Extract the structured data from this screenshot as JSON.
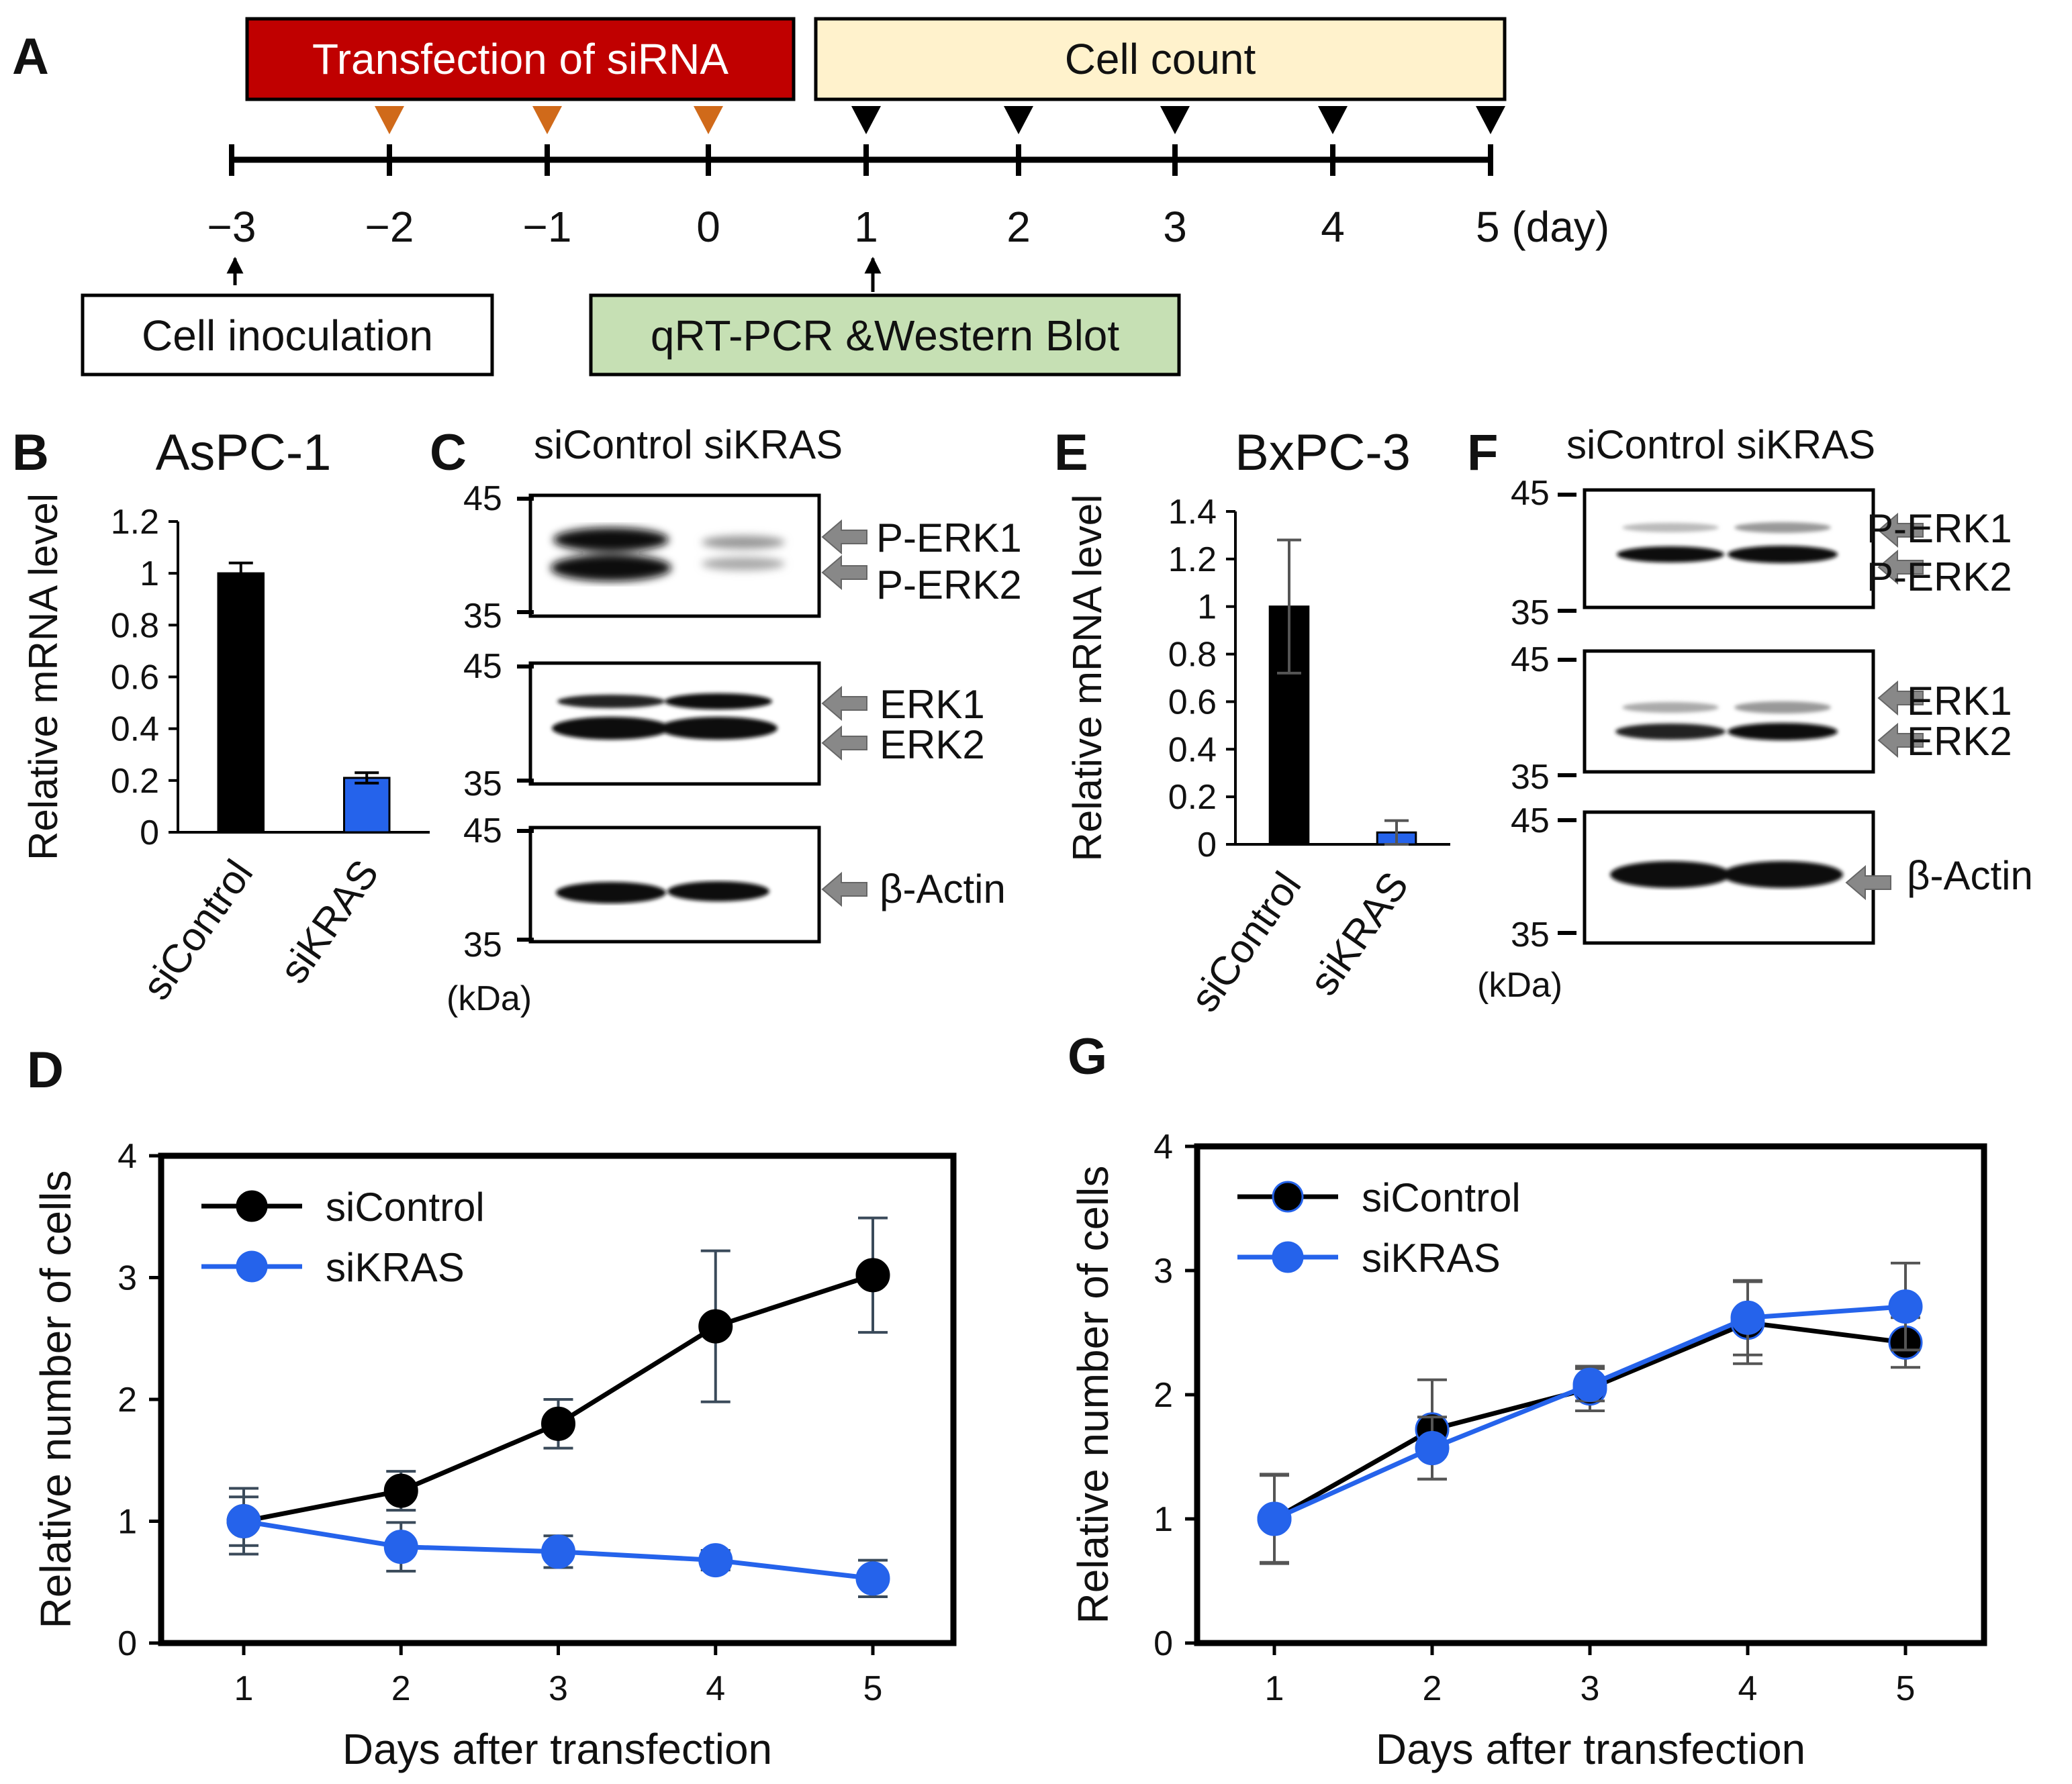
{
  "panels": {
    "A": "A",
    "B": "B",
    "C": "C",
    "D": "D",
    "E": "E",
    "F": "F",
    "G": "G"
  },
  "timeline": {
    "transfection_label": "Transfection of siRNA",
    "cellcount_label": "Cell count",
    "inoculation_label": "Cell inoculation",
    "assay_label": "qRT-PCR &Western Blot",
    "days": [
      "−3",
      "−2",
      "−1",
      "0",
      "1",
      "2",
      "3",
      "4",
      "5 (day)"
    ],
    "colors": {
      "transfection_fill": "#c00000",
      "cellcount_fill": "#fff2cc",
      "assay_fill": "#c6e0b4",
      "orange_marker": "#d06a1a"
    }
  },
  "blots": {
    "header": "siControl siKRAS",
    "unit": "(kDa)",
    "mw_45": "45",
    "mw_35": "35",
    "labels": {
      "perk1": "P-ERK1",
      "perk2": "P-ERK2",
      "erk1": "ERK1",
      "erk2": "ERK2",
      "actin": "β-Actin"
    }
  },
  "chart_data": [
    {
      "id": "B",
      "type": "bar",
      "title": "AsPC-1",
      "categories": [
        "siControl",
        "siKRAS"
      ],
      "values": [
        1.0,
        0.21
      ],
      "errors": [
        0.04,
        0.02
      ],
      "colors": [
        "#000000",
        "#2563eb"
      ],
      "ylabel": "Relative mRNA level",
      "ylim": [
        0,
        1.2
      ],
      "yticks": [
        "0",
        "0.2",
        "0.4",
        "0.6",
        "0.8",
        "1",
        "1.2"
      ]
    },
    {
      "id": "E",
      "type": "bar",
      "title": "BxPC-3",
      "categories": [
        "siControl",
        "siKRAS"
      ],
      "values": [
        1.0,
        0.05
      ],
      "errors": [
        0.28,
        0.05
      ],
      "colors": [
        "#000000",
        "#2563eb"
      ],
      "ylabel": "Relative mRNA level",
      "ylim": [
        0,
        1.4
      ],
      "yticks": [
        "0",
        "0.2",
        "0.4",
        "0.6",
        "0.8",
        "1",
        "1.2",
        "1.4"
      ]
    },
    {
      "id": "D",
      "type": "line",
      "x": [
        1,
        2,
        3,
        4,
        5
      ],
      "series": [
        {
          "name": "siControl",
          "color": "#000000",
          "values": [
            1.0,
            1.25,
            1.8,
            2.6,
            3.02
          ],
          "errors": [
            0.27,
            0.16,
            0.2,
            0.62,
            0.47
          ]
        },
        {
          "name": "siKRAS",
          "color": "#2563eb",
          "values": [
            1.0,
            0.79,
            0.75,
            0.68,
            0.53
          ],
          "errors": [
            0.2,
            0.2,
            0.13,
            0.08,
            0.15
          ]
        }
      ],
      "xlabel": "Days after transfection",
      "ylabel": "Relative number of cells",
      "ylim": [
        0,
        4
      ],
      "yticks": [
        "0",
        "1",
        "2",
        "3",
        "4"
      ],
      "xticks": [
        "1",
        "2",
        "3",
        "4",
        "5"
      ],
      "legend": "top-left"
    },
    {
      "id": "G",
      "type": "line",
      "x": [
        1,
        2,
        3,
        4,
        5
      ],
      "series": [
        {
          "name": "siControl",
          "color": "#000000",
          "values": [
            1.0,
            1.72,
            2.05,
            2.58,
            2.42
          ],
          "errors": [
            0.36,
            0.4,
            0.18,
            0.33,
            0.2
          ]
        },
        {
          "name": "siKRAS",
          "color": "#2563eb",
          "values": [
            1.0,
            1.57,
            2.08,
            2.62,
            2.71
          ],
          "errors": [
            0.35,
            0.25,
            0.13,
            0.3,
            0.35
          ]
        }
      ],
      "xlabel": "Days after transfection",
      "ylabel": "Relative number of cells",
      "ylim": [
        0,
        4
      ],
      "yticks": [
        "0",
        "1",
        "2",
        "3",
        "4"
      ],
      "xticks": [
        "1",
        "2",
        "3",
        "4",
        "5"
      ],
      "legend": "top-left"
    }
  ]
}
